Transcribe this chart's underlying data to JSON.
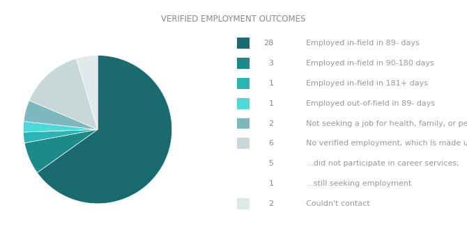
{
  "title": "VERIFIED EMPLOYMENT OUTCOMES",
  "slices": [
    28,
    3,
    1,
    1,
    2,
    6,
    2
  ],
  "colors": [
    "#1a6b70",
    "#1d8a8a",
    "#2ab5b5",
    "#4dd9d9",
    "#7cb8bc",
    "#c8d8d8",
    "#e0eaea"
  ],
  "legend_items": [
    {
      "value": "28",
      "label": "Employed in-field in 89- days",
      "color": "#1a6b70",
      "show_patch": true
    },
    {
      "value": "3",
      "label": "Employed in-field in 90-180 days",
      "color": "#1d8a8a",
      "show_patch": true
    },
    {
      "value": "1",
      "label": "Employed in-field in 181+ days",
      "color": "#2ab5b5",
      "show_patch": true
    },
    {
      "value": "1",
      "label": "Employed out-of-field in 89- days",
      "color": "#4dd9d9",
      "show_patch": true
    },
    {
      "value": "2",
      "label": "Not seeking a job for health, family, or personal reasons",
      "color": "#7cb8bc",
      "show_patch": true
    },
    {
      "value": "6",
      "label": "No verified employment, which is made up of...",
      "color": "#c8d8d8",
      "show_patch": true
    },
    {
      "value": "5",
      "label": "...did not participate in career services;",
      "color": null,
      "show_patch": false
    },
    {
      "value": "1",
      "label": "...still seeking employment",
      "color": null,
      "show_patch": false
    },
    {
      "value": "2",
      "label": "Couldn't contact",
      "color": "#dde8e8",
      "show_patch": true
    }
  ],
  "bg_color": "#ffffff",
  "title_color": "#888888",
  "text_color": "#999999",
  "value_color": "#888888"
}
